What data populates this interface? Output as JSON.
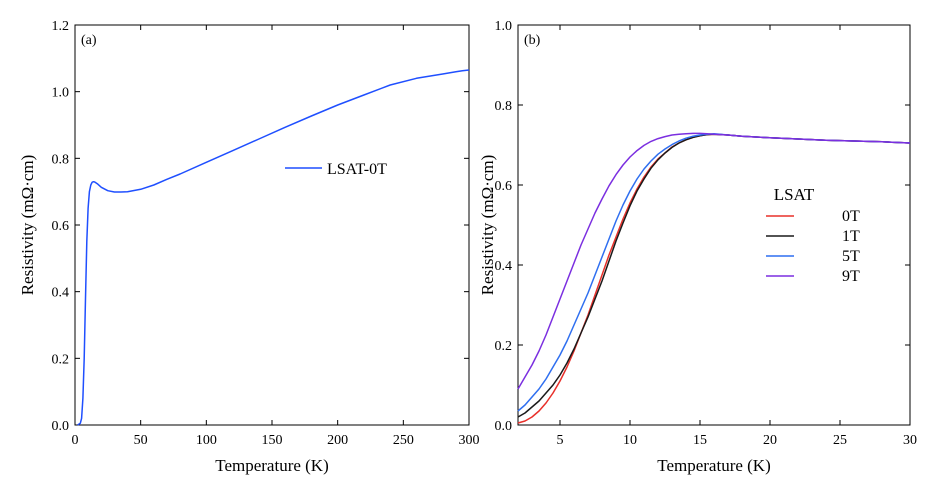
{
  "chart_data": [
    {
      "type": "line",
      "panel_label": "(a)",
      "xlabel": "Temperature (K)",
      "ylabel": "Resistivity (mΩ·cm)",
      "xlim": [
        0,
        300
      ],
      "ylim": [
        0,
        1.2
      ],
      "x_ticks": [
        "0",
        "50",
        "100",
        "150",
        "200",
        "250",
        "300"
      ],
      "y_ticks": [
        "0.0",
        "0.2",
        "0.4",
        "0.6",
        "0.8",
        "1.0",
        "1.2"
      ],
      "grid": false,
      "legend_position": "right",
      "series": [
        {
          "name": "LSAT-0T",
          "color": "#1f4fff",
          "x": [
            2,
            4,
            5,
            6,
            7,
            8,
            9,
            10,
            11,
            12,
            13,
            14,
            15,
            17,
            20,
            25,
            30,
            35,
            40,
            50,
            60,
            70,
            80,
            100,
            120,
            140,
            160,
            180,
            200,
            220,
            240,
            260,
            280,
            290,
            295,
            300
          ],
          "y": [
            0.0,
            0.005,
            0.02,
            0.08,
            0.2,
            0.38,
            0.55,
            0.65,
            0.7,
            0.72,
            0.728,
            0.73,
            0.729,
            0.724,
            0.713,
            0.703,
            0.699,
            0.699,
            0.7,
            0.707,
            0.72,
            0.737,
            0.753,
            0.788,
            0.823,
            0.858,
            0.893,
            0.927,
            0.96,
            0.99,
            1.02,
            1.04,
            1.053,
            1.06,
            1.063,
            1.065
          ]
        }
      ]
    },
    {
      "type": "line",
      "panel_label": "(b)",
      "xlabel": "Temperature (K)",
      "ylabel": "Resistivity (mΩ·cm)",
      "xlim": [
        2,
        30
      ],
      "ylim": [
        0,
        1.0
      ],
      "x_ticks": [
        "5",
        "10",
        "15",
        "20",
        "25",
        "30"
      ],
      "y_ticks": [
        "0.0",
        "0.2",
        "0.4",
        "0.6",
        "0.8",
        "1.0"
      ],
      "grid": false,
      "legend_title": "LSAT",
      "legend_position": "center-right",
      "series": [
        {
          "name": "0T",
          "color": "#e8302a",
          "x": [
            2,
            2.5,
            3,
            3.5,
            4,
            4.5,
            5,
            5.5,
            6,
            6.5,
            7,
            7.5,
            8,
            8.5,
            9,
            9.5,
            10,
            10.5,
            11,
            11.5,
            12,
            12.5,
            13,
            13.5,
            14,
            14.5,
            15,
            15.5,
            16,
            17,
            18,
            19,
            20,
            22,
            24,
            26,
            28,
            30
          ],
          "y": [
            0.005,
            0.01,
            0.02,
            0.035,
            0.055,
            0.08,
            0.11,
            0.145,
            0.185,
            0.23,
            0.275,
            0.325,
            0.375,
            0.425,
            0.47,
            0.515,
            0.555,
            0.59,
            0.62,
            0.645,
            0.665,
            0.68,
            0.695,
            0.705,
            0.713,
            0.719,
            0.723,
            0.726,
            0.727,
            0.725,
            0.722,
            0.72,
            0.718,
            0.715,
            0.712,
            0.71,
            0.708,
            0.705
          ]
        },
        {
          "name": "1T",
          "color": "#1a1a1a",
          "x": [
            2,
            2.5,
            3,
            3.5,
            4,
            4.5,
            5,
            5.5,
            6,
            6.5,
            7,
            7.5,
            8,
            8.5,
            9,
            9.5,
            10,
            10.5,
            11,
            11.5,
            12,
            12.5,
            13,
            13.5,
            14,
            14.5,
            15,
            15.5,
            16,
            17,
            18,
            19,
            20,
            22,
            24,
            26,
            28,
            30
          ],
          "y": [
            0.02,
            0.03,
            0.045,
            0.06,
            0.08,
            0.1,
            0.125,
            0.155,
            0.19,
            0.23,
            0.27,
            0.315,
            0.36,
            0.41,
            0.46,
            0.505,
            0.548,
            0.585,
            0.615,
            0.642,
            0.663,
            0.68,
            0.694,
            0.705,
            0.713,
            0.719,
            0.723,
            0.726,
            0.727,
            0.725,
            0.722,
            0.72,
            0.718,
            0.715,
            0.712,
            0.71,
            0.708,
            0.705
          ]
        },
        {
          "name": "5T",
          "color": "#2f6ff0",
          "x": [
            2,
            2.5,
            3,
            3.5,
            4,
            4.5,
            5,
            5.5,
            6,
            6.5,
            7,
            7.5,
            8,
            8.5,
            9,
            9.5,
            10,
            10.5,
            11,
            11.5,
            12,
            12.5,
            13,
            13.5,
            14,
            14.5,
            15,
            15.5,
            16,
            17,
            18,
            19,
            20,
            22,
            24,
            26,
            28,
            30
          ],
          "y": [
            0.035,
            0.05,
            0.07,
            0.09,
            0.115,
            0.145,
            0.175,
            0.21,
            0.25,
            0.29,
            0.33,
            0.375,
            0.42,
            0.465,
            0.51,
            0.55,
            0.585,
            0.615,
            0.64,
            0.66,
            0.677,
            0.69,
            0.701,
            0.71,
            0.717,
            0.722,
            0.725,
            0.727,
            0.728,
            0.725,
            0.722,
            0.72,
            0.718,
            0.715,
            0.712,
            0.71,
            0.708,
            0.705
          ]
        },
        {
          "name": "9T",
          "color": "#7b2fe0",
          "x": [
            2,
            2.5,
            3,
            3.5,
            4,
            4.5,
            5,
            5.5,
            6,
            6.5,
            7,
            7.5,
            8,
            8.5,
            9,
            9.5,
            10,
            10.5,
            11,
            11.5,
            12,
            12.5,
            13,
            13.5,
            14,
            14.5,
            15,
            15.5,
            16,
            17,
            18,
            19,
            20,
            22,
            24,
            26,
            28,
            30
          ],
          "y": [
            0.09,
            0.12,
            0.15,
            0.185,
            0.225,
            0.27,
            0.315,
            0.36,
            0.405,
            0.45,
            0.49,
            0.53,
            0.565,
            0.598,
            0.626,
            0.65,
            0.67,
            0.686,
            0.699,
            0.709,
            0.716,
            0.721,
            0.725,
            0.727,
            0.728,
            0.729,
            0.729,
            0.728,
            0.727,
            0.725,
            0.722,
            0.72,
            0.718,
            0.715,
            0.712,
            0.71,
            0.708,
            0.705
          ]
        }
      ]
    }
  ]
}
